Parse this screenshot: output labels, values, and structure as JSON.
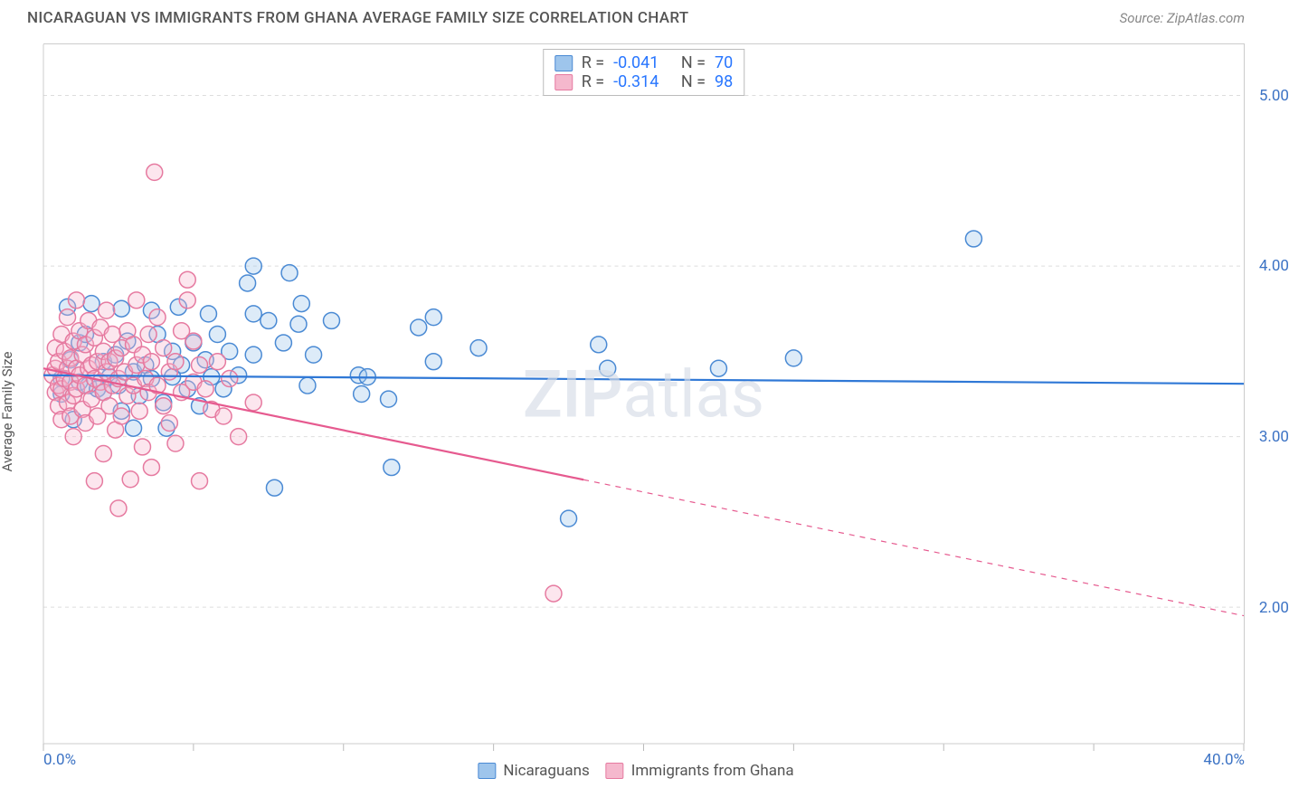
{
  "title": "NICARAGUAN VS IMMIGRANTS FROM GHANA AVERAGE FAMILY SIZE CORRELATION CHART",
  "source_prefix": "Source: ",
  "source_name": "ZipAtlas.com",
  "ylabel": "Average Family Size",
  "watermark_a": "ZIP",
  "watermark_b": "atlas",
  "chart": {
    "type": "scatter-with-regression",
    "background_color": "#ffffff",
    "border_color": "#cccccc",
    "grid_color": "#dddddd",
    "grid_dash": "4,4",
    "xlim": [
      0,
      40
    ],
    "ylim": [
      1.2,
      5.3
    ],
    "ytick_values": [
      2.0,
      3.0,
      4.0,
      5.0
    ],
    "ytick_labels": [
      "2.00",
      "3.00",
      "4.00",
      "5.00"
    ],
    "xtick_positions": [
      0,
      5,
      10,
      15,
      20,
      25,
      30,
      35,
      40
    ],
    "xtick_label_positions": [
      0,
      40
    ],
    "xtick_labels": [
      "0.0%",
      "40.0%"
    ],
    "ytick_label_color": "#3b72c4",
    "xtick_label_color": "#3b72c4",
    "marker_radius": 9,
    "marker_stroke_width": 1.5,
    "marker_fill_opacity": 0.35,
    "line_width": 2.2,
    "series": [
      {
        "name": "Nicaraguans",
        "color_stroke": "#4a8ad4",
        "color_fill": "#9ec5ec",
        "line_color": "#2f78d6",
        "R": "-0.041",
        "N": "70",
        "regression": {
          "x0": 0,
          "y0": 3.36,
          "x1": 40,
          "y1": 3.31,
          "solid_until_x": 40
        },
        "points": [
          [
            0.6,
            3.34
          ],
          [
            0.6,
            3.25
          ],
          [
            0.8,
            3.76
          ],
          [
            0.9,
            3.45
          ],
          [
            1.0,
            3.1
          ],
          [
            1.2,
            3.55
          ],
          [
            1.2,
            3.32
          ],
          [
            1.4,
            3.6
          ],
          [
            1.5,
            3.3
          ],
          [
            1.6,
            3.78
          ],
          [
            1.8,
            3.28
          ],
          [
            2.0,
            3.44
          ],
          [
            2.0,
            3.26
          ],
          [
            2.2,
            3.35
          ],
          [
            2.4,
            3.48
          ],
          [
            2.5,
            3.3
          ],
          [
            2.6,
            3.15
          ],
          [
            2.6,
            3.75
          ],
          [
            2.8,
            3.56
          ],
          [
            3.0,
            3.38
          ],
          [
            3.0,
            3.05
          ],
          [
            3.2,
            3.24
          ],
          [
            3.4,
            3.42
          ],
          [
            3.6,
            3.34
          ],
          [
            3.6,
            3.74
          ],
          [
            3.8,
            3.6
          ],
          [
            4.0,
            3.2
          ],
          [
            4.1,
            3.05
          ],
          [
            4.3,
            3.5
          ],
          [
            4.3,
            3.35
          ],
          [
            4.5,
            3.76
          ],
          [
            4.6,
            3.42
          ],
          [
            4.8,
            3.28
          ],
          [
            5.0,
            3.55
          ],
          [
            5.2,
            3.18
          ],
          [
            5.4,
            3.45
          ],
          [
            5.5,
            3.72
          ],
          [
            5.6,
            3.35
          ],
          [
            5.8,
            3.6
          ],
          [
            6.0,
            3.28
          ],
          [
            6.2,
            3.5
          ],
          [
            6.5,
            3.36
          ],
          [
            6.8,
            3.9
          ],
          [
            7.0,
            3.48
          ],
          [
            7.0,
            3.72
          ],
          [
            7.0,
            4.0
          ],
          [
            7.5,
            3.68
          ],
          [
            7.7,
            2.7
          ],
          [
            8.0,
            3.55
          ],
          [
            8.2,
            3.96
          ],
          [
            8.5,
            3.66
          ],
          [
            8.6,
            3.78
          ],
          [
            8.8,
            3.3
          ],
          [
            9.0,
            3.48
          ],
          [
            9.6,
            3.68
          ],
          [
            10.5,
            3.36
          ],
          [
            10.6,
            3.25
          ],
          [
            10.8,
            3.35
          ],
          [
            11.5,
            3.22
          ],
          [
            11.6,
            2.82
          ],
          [
            12.5,
            3.64
          ],
          [
            13.0,
            3.44
          ],
          [
            13.0,
            3.7
          ],
          [
            14.5,
            3.52
          ],
          [
            17.5,
            2.52
          ],
          [
            18.5,
            3.54
          ],
          [
            18.8,
            3.4
          ],
          [
            22.5,
            3.4
          ],
          [
            25.0,
            3.46
          ],
          [
            31.0,
            4.16
          ]
        ]
      },
      {
        "name": "Immigrants from Ghana",
        "color_stroke": "#e67aa0",
        "color_fill": "#f5b8cd",
        "line_color": "#e65a8f",
        "R": "-0.314",
        "N": "98",
        "regression": {
          "x0": 0,
          "y0": 3.4,
          "x1": 40,
          "y1": 1.95,
          "solid_until_x": 18
        },
        "points": [
          [
            0.3,
            3.36
          ],
          [
            0.4,
            3.26
          ],
          [
            0.4,
            3.4
          ],
          [
            0.4,
            3.52
          ],
          [
            0.5,
            3.18
          ],
          [
            0.5,
            3.3
          ],
          [
            0.5,
            3.44
          ],
          [
            0.6,
            3.1
          ],
          [
            0.6,
            3.6
          ],
          [
            0.6,
            3.28
          ],
          [
            0.7,
            3.34
          ],
          [
            0.7,
            3.5
          ],
          [
            0.8,
            3.2
          ],
          [
            0.8,
            3.4
          ],
          [
            0.8,
            3.7
          ],
          [
            0.9,
            3.12
          ],
          [
            0.9,
            3.46
          ],
          [
            0.9,
            3.32
          ],
          [
            1.0,
            3.0
          ],
          [
            1.0,
            3.24
          ],
          [
            1.0,
            3.56
          ],
          [
            1.1,
            3.4
          ],
          [
            1.1,
            3.28
          ],
          [
            1.1,
            3.8
          ],
          [
            1.2,
            3.36
          ],
          [
            1.2,
            3.62
          ],
          [
            1.3,
            3.16
          ],
          [
            1.3,
            3.48
          ],
          [
            1.4,
            3.3
          ],
          [
            1.4,
            3.08
          ],
          [
            1.4,
            3.54
          ],
          [
            1.5,
            3.4
          ],
          [
            1.5,
            3.68
          ],
          [
            1.6,
            3.22
          ],
          [
            1.6,
            3.42
          ],
          [
            1.7,
            2.74
          ],
          [
            1.7,
            3.34
          ],
          [
            1.7,
            3.58
          ],
          [
            1.8,
            3.12
          ],
          [
            1.8,
            3.44
          ],
          [
            1.9,
            3.32
          ],
          [
            1.9,
            3.64
          ],
          [
            2.0,
            2.9
          ],
          [
            2.0,
            3.26
          ],
          [
            2.0,
            3.5
          ],
          [
            2.1,
            3.38
          ],
          [
            2.1,
            3.74
          ],
          [
            2.2,
            3.18
          ],
          [
            2.2,
            3.44
          ],
          [
            2.3,
            3.3
          ],
          [
            2.3,
            3.6
          ],
          [
            2.4,
            3.04
          ],
          [
            2.4,
            3.46
          ],
          [
            2.5,
            3.34
          ],
          [
            2.5,
            2.58
          ],
          [
            2.6,
            3.12
          ],
          [
            2.6,
            3.52
          ],
          [
            2.7,
            3.38
          ],
          [
            2.8,
            3.24
          ],
          [
            2.8,
            3.62
          ],
          [
            2.9,
            2.75
          ],
          [
            3.0,
            3.3
          ],
          [
            3.0,
            3.54
          ],
          [
            3.1,
            3.42
          ],
          [
            3.1,
            3.8
          ],
          [
            3.2,
            3.15
          ],
          [
            3.3,
            2.94
          ],
          [
            3.3,
            3.48
          ],
          [
            3.4,
            3.34
          ],
          [
            3.5,
            3.26
          ],
          [
            3.5,
            3.6
          ],
          [
            3.6,
            2.82
          ],
          [
            3.6,
            3.44
          ],
          [
            3.7,
            4.55
          ],
          [
            3.8,
            3.3
          ],
          [
            3.8,
            3.7
          ],
          [
            4.0,
            3.18
          ],
          [
            4.0,
            3.52
          ],
          [
            4.2,
            3.08
          ],
          [
            4.2,
            3.38
          ],
          [
            4.4,
            2.96
          ],
          [
            4.4,
            3.44
          ],
          [
            4.6,
            3.26
          ],
          [
            4.6,
            3.62
          ],
          [
            4.8,
            3.8
          ],
          [
            4.8,
            3.92
          ],
          [
            5.0,
            3.32
          ],
          [
            5.0,
            3.56
          ],
          [
            5.2,
            2.74
          ],
          [
            5.2,
            3.42
          ],
          [
            5.4,
            3.28
          ],
          [
            5.6,
            3.16
          ],
          [
            5.8,
            3.44
          ],
          [
            6.0,
            3.12
          ],
          [
            6.2,
            3.34
          ],
          [
            6.5,
            3.0
          ],
          [
            7.0,
            3.2
          ],
          [
            17.0,
            2.08
          ]
        ]
      }
    ]
  },
  "legend_series": [
    "Nicaraguans",
    "Immigrants from Ghana"
  ]
}
